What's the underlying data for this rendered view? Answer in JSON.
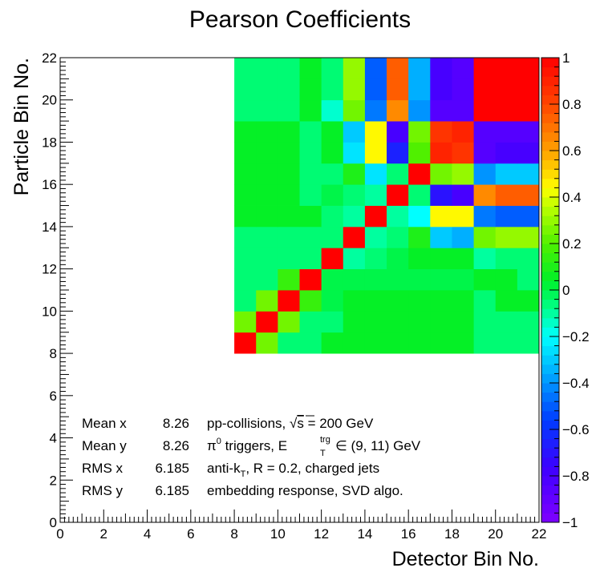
{
  "chart_data": {
    "type": "heatmap",
    "title": "Pearson Coefficients",
    "xlabel": "Detector Bin No.",
    "ylabel": "Particle Bin No.",
    "xlim": [
      0,
      22
    ],
    "ylim": [
      0,
      22
    ],
    "zlim": [
      -1,
      1
    ],
    "x_bins": [
      8,
      9,
      10,
      11,
      12,
      13,
      14,
      15,
      16,
      17,
      18,
      19,
      20,
      21
    ],
    "y_bins": [
      8,
      9,
      10,
      11,
      12,
      13,
      14,
      15,
      16,
      17,
      18,
      19,
      20,
      21
    ],
    "x_ticks": [
      "0",
      "2",
      "4",
      "6",
      "8",
      "10",
      "12",
      "14",
      "16",
      "18",
      "20",
      "22"
    ],
    "y_ticks": [
      "0",
      "2",
      "4",
      "6",
      "8",
      "10",
      "12",
      "14",
      "16",
      "18",
      "20",
      "22"
    ],
    "colorbar_ticks": [
      "1",
      "0.8",
      "0.6",
      "0.4",
      "0.2",
      "0",
      "−0.2",
      "−0.4",
      "−0.6",
      "−0.8",
      "−1"
    ],
    "z": [
      [
        1.0,
        0.25,
        -0.05,
        -0.05,
        0.05,
        0.05,
        0.05,
        0.05,
        0.05,
        0.05,
        0.05,
        -0.05,
        -0.05,
        -0.05
      ],
      [
        0.25,
        1.0,
        0.25,
        -0.05,
        -0.05,
        0.05,
        0.05,
        0.05,
        0.05,
        0.05,
        0.05,
        -0.05,
        -0.05,
        -0.05
      ],
      [
        -0.05,
        0.25,
        1.0,
        0.15,
        0.0,
        0.05,
        0.05,
        0.05,
        0.05,
        0.05,
        0.05,
        -0.05,
        0.05,
        0.05
      ],
      [
        -0.05,
        -0.05,
        0.15,
        1.0,
        0.0,
        0.0,
        0.0,
        0.0,
        0.0,
        0.0,
        0.0,
        0.05,
        0.05,
        -0.05
      ],
      [
        -0.05,
        -0.05,
        -0.05,
        -0.05,
        1.0,
        -0.1,
        -0.05,
        0.0,
        0.05,
        0.05,
        0.05,
        -0.1,
        -0.05,
        -0.05
      ],
      [
        -0.05,
        -0.05,
        -0.05,
        -0.05,
        -0.05,
        1.0,
        -0.1,
        -0.05,
        0.1,
        -0.3,
        -0.35,
        0.25,
        0.3,
        0.3
      ],
      [
        0.05,
        0.05,
        0.05,
        0.05,
        -0.05,
        -0.1,
        1.0,
        -0.1,
        -0.2,
        0.45,
        0.45,
        -0.45,
        -0.5,
        -0.5
      ],
      [
        0.05,
        0.05,
        0.05,
        -0.05,
        0.0,
        -0.05,
        -0.1,
        1.0,
        -0.05,
        -0.7,
        -0.8,
        0.65,
        0.75,
        0.75
      ],
      [
        0.05,
        0.05,
        0.05,
        -0.05,
        -0.05,
        0.1,
        -0.25,
        -0.05,
        1.0,
        0.25,
        0.3,
        -0.4,
        -0.3,
        -0.3
      ],
      [
        0.05,
        0.05,
        0.05,
        -0.05,
        0.05,
        -0.25,
        0.45,
        -0.65,
        0.2,
        0.9,
        0.85,
        -0.85,
        -0.8,
        -0.8
      ],
      [
        0.05,
        0.05,
        0.05,
        -0.05,
        0.05,
        -0.3,
        0.45,
        -0.8,
        0.25,
        0.85,
        0.9,
        -0.85,
        -0.85,
        -0.85
      ],
      [
        -0.05,
        -0.05,
        -0.05,
        0.05,
        -0.15,
        0.25,
        -0.45,
        0.65,
        -0.4,
        -0.85,
        -0.85,
        1.0,
        1.0,
        1.0
      ],
      [
        -0.05,
        -0.05,
        -0.05,
        0.05,
        -0.05,
        0.3,
        -0.5,
        0.75,
        -0.35,
        -0.8,
        -0.85,
        1.0,
        1.0,
        1.0
      ],
      [
        -0.05,
        -0.05,
        -0.05,
        0.05,
        -0.05,
        0.3,
        -0.5,
        0.75,
        -0.35,
        -0.8,
        -0.85,
        1.0,
        1.0,
        1.0
      ]
    ]
  },
  "stats": [
    {
      "label": "Mean x",
      "value": "8.26"
    },
    {
      "label": "Mean y",
      "value": "8.26"
    },
    {
      "label": "RMS x",
      "value": "6.185"
    },
    {
      "label": "RMS y",
      "value": "6.185"
    }
  ],
  "annotations": {
    "line1_a": "pp-collisions, ",
    "line1_sqrt": "√",
    "line1_s": "s",
    "line1_b": " = 200 GeV",
    "line2_pi": "π",
    "line2_zero": "0",
    "line2_a": " triggers, E",
    "line2_sup": "trg",
    "line2_sub": "T",
    "line2_b": " ∈ (9, 11) GeV",
    "line3_a": "anti-k",
    "line3_sub": "T",
    "line3_b": ", R = 0.2, charged jets",
    "line4": "embedding response, SVD algo."
  }
}
